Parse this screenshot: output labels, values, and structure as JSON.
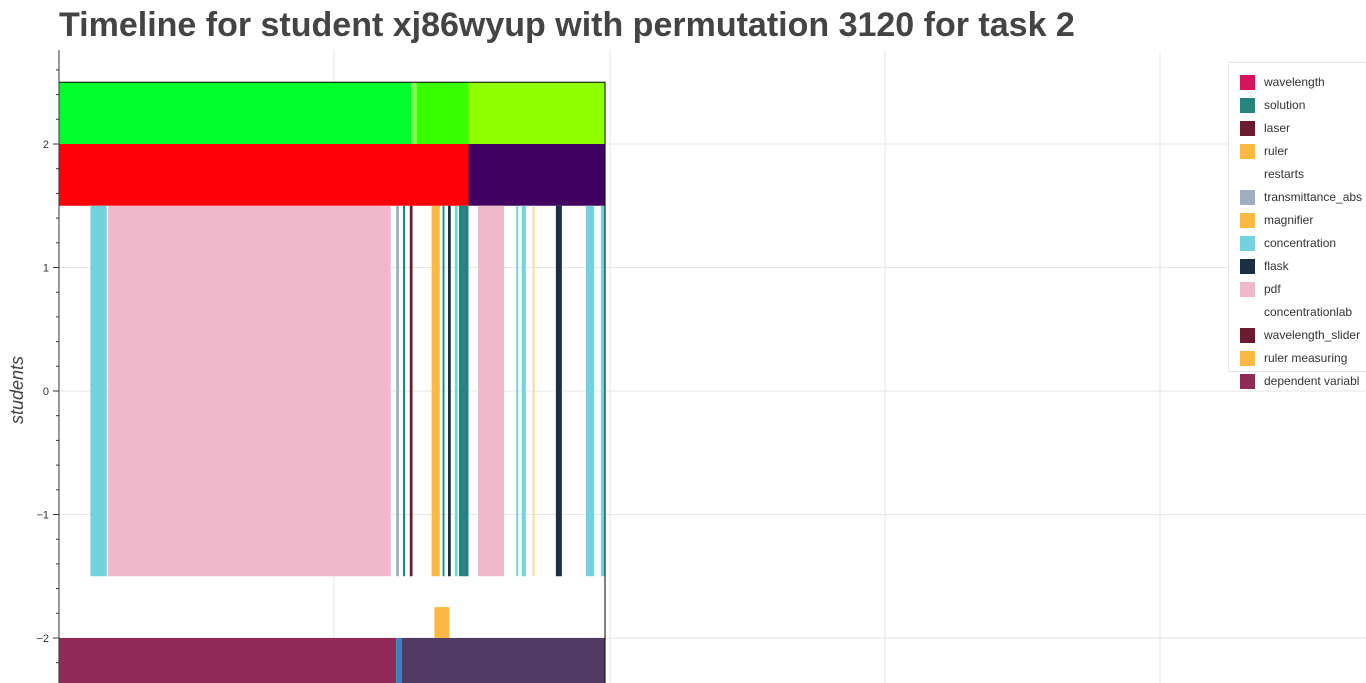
{
  "chart_data": {
    "type": "timeline",
    "title": "Timeline for student xj86wyup with permutation 3120 for task 2",
    "ylabel": "students",
    "xlabel": "",
    "ylim": [
      -2.38,
      2.75
    ],
    "yticks": [
      {
        "value": 2,
        "label": "2"
      },
      {
        "value": 1,
        "label": "1"
      },
      {
        "value": 0,
        "label": "0"
      },
      {
        "value": -1,
        "label": "−1"
      },
      {
        "value": -2,
        "label": "−2"
      }
    ],
    "grid": true,
    "legend_position": "top-right",
    "legend": [
      {
        "name": "wavelength",
        "color": "#d6145c"
      },
      {
        "name": "solution",
        "color": "#23857c"
      },
      {
        "name": "laser",
        "color": "#6b1a30"
      },
      {
        "name": "ruler",
        "color": "#fdb844"
      },
      {
        "name": "restarts",
        "color": "#ffffff"
      },
      {
        "name": "transmittance_abs",
        "color": "#9eadc0"
      },
      {
        "name": "magnifier",
        "color": "#fdb844"
      },
      {
        "name": "concentration",
        "color": "#73d2dc"
      },
      {
        "name": "flask",
        "color": "#1a2e44"
      },
      {
        "name": "pdf",
        "color": "#f0b8cb"
      },
      {
        "name": "concentrationlab",
        "color": "#ffffff"
      },
      {
        "name": "wavelength_slider",
        "color": "#6b1a30"
      },
      {
        "name": "ruler measuring",
        "color": "#fdb844"
      },
      {
        "name": "dependent variabl",
        "color": "#8f2b56"
      }
    ],
    "bands": [
      {
        "y0": 2.0,
        "y1": 2.5,
        "segments": [
          {
            "x0": 0.0,
            "x1": 12.9,
            "color": "#00ff2d"
          },
          {
            "x0": 12.9,
            "x1": 13.1,
            "color": "#88ff55"
          },
          {
            "x0": 13.1,
            "x1": 15.0,
            "color": "#3aff00"
          },
          {
            "x0": 15.0,
            "x1": 20.0,
            "color": "#8fff00"
          }
        ]
      },
      {
        "y0": 1.5,
        "y1": 2.0,
        "segments": [
          {
            "x0": 0.0,
            "x1": 15.0,
            "color": "#ff0008"
          },
          {
            "x0": 15.0,
            "x1": 20.0,
            "color": "#420060"
          }
        ]
      },
      {
        "y0": -1.5,
        "y1": 1.5,
        "segments": [
          {
            "x0": 1.15,
            "x1": 1.75,
            "color": "#73d2dc"
          },
          {
            "x0": 1.8,
            "x1": 12.15,
            "color": "#f0b8cb"
          },
          {
            "x0": 12.35,
            "x1": 12.45,
            "color": "#9eadc0"
          },
          {
            "x0": 12.6,
            "x1": 12.68,
            "color": "#23857c"
          },
          {
            "x0": 12.85,
            "x1": 12.95,
            "color": "#6b1a30"
          },
          {
            "x0": 13.65,
            "x1": 13.95,
            "color": "#fdb844"
          },
          {
            "x0": 14.05,
            "x1": 14.12,
            "color": "#23857c"
          },
          {
            "x0": 14.25,
            "x1": 14.35,
            "color": "#1a2e44"
          },
          {
            "x0": 14.5,
            "x1": 14.6,
            "color": "#73d2dc"
          },
          {
            "x0": 14.65,
            "x1": 15.0,
            "color": "#23857c"
          },
          {
            "x0": 15.35,
            "x1": 16.3,
            "color": "#f0b8cb"
          },
          {
            "x0": 16.75,
            "x1": 16.82,
            "color": "#73d2dc"
          },
          {
            "x0": 16.95,
            "x1": 17.1,
            "color": "#73d2dc"
          },
          {
            "x0": 17.35,
            "x1": 17.42,
            "color": "#fdd89a"
          },
          {
            "x0": 18.2,
            "x1": 18.42,
            "color": "#1a2e44"
          },
          {
            "x0": 19.3,
            "x1": 19.6,
            "color": "#73d2dc"
          },
          {
            "x0": 19.85,
            "x1": 20.0,
            "color": "#73d2dc"
          }
        ]
      },
      {
        "y0": -2.0,
        "y1": -1.75,
        "segments": [
          {
            "x0": 13.75,
            "x1": 14.3,
            "color": "#fdb844"
          }
        ]
      },
      {
        "y0": -2.38,
        "y1": -2.0,
        "segments": [
          {
            "x0": 0.0,
            "x1": 12.35,
            "color": "#8f2b56"
          },
          {
            "x0": 12.35,
            "x1": 12.55,
            "color": "#3d7fc4"
          },
          {
            "x0": 12.55,
            "x1": 20.0,
            "color": "#523c66"
          }
        ]
      }
    ],
    "outline": {
      "x0": 0.0,
      "x1": 20.0,
      "y0": -2.38,
      "y1": 2.5
    }
  }
}
